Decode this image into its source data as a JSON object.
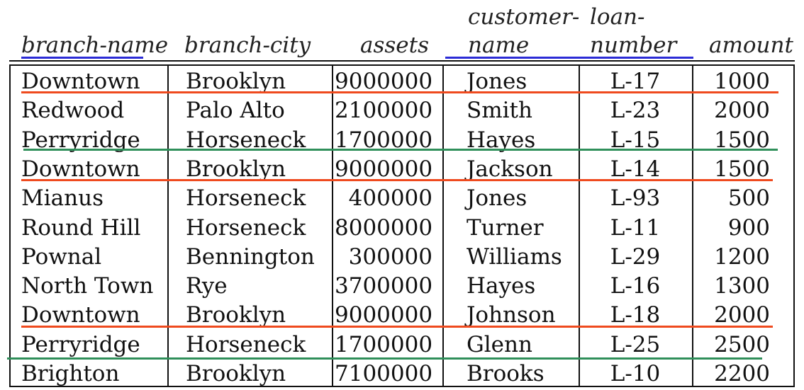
{
  "headers": [
    {
      "line1": "",
      "line2": "branch-name"
    },
    {
      "line1": "",
      "line2": "branch-city"
    },
    {
      "line1": "",
      "line2": "assets"
    },
    {
      "line1": "customer-",
      "line2": "name"
    },
    {
      "line1": "loan-",
      "line2": "number"
    },
    {
      "line1": "",
      "line2": "amount"
    }
  ],
  "rows": [
    [
      "Downtown",
      "Brooklyn",
      "9000000",
      "Jones",
      "L-17",
      "1000"
    ],
    [
      "Redwood",
      "Palo Alto",
      "2100000",
      "Smith",
      "L-23",
      "2000"
    ],
    [
      "Perryridge",
      "Horseneck",
      "1700000",
      "Hayes",
      "L-15",
      "1500"
    ],
    [
      "Downtown",
      "Brooklyn",
      "9000000",
      "Jackson",
      "L-14",
      "1500"
    ],
    [
      "Mianus",
      "Horseneck",
      "400000",
      "Jones",
      "L-93",
      "500"
    ],
    [
      "Round Hill",
      "Horseneck",
      "8000000",
      "Turner",
      "L-11",
      "900"
    ],
    [
      "Pownal",
      "Bennington",
      "300000",
      "Williams",
      "L-29",
      "1200"
    ],
    [
      "North Town",
      "Rye",
      "3700000",
      "Hayes",
      "L-16",
      "1300"
    ],
    [
      "Downtown",
      "Brooklyn",
      "9000000",
      "Johnson",
      "L-18",
      "2000"
    ],
    [
      "Perryridge",
      "Horseneck",
      "1700000",
      "Glenn",
      "L-25",
      "2500"
    ],
    [
      "Brighton",
      "Brooklyn",
      "7100000",
      "Brooks",
      "L-10",
      "2200"
    ]
  ],
  "highlights": {
    "header_underline_color": "#2b2bd6",
    "downtown_color": "#ef4a1e",
    "perryridge_color": "#2f8f5a"
  }
}
